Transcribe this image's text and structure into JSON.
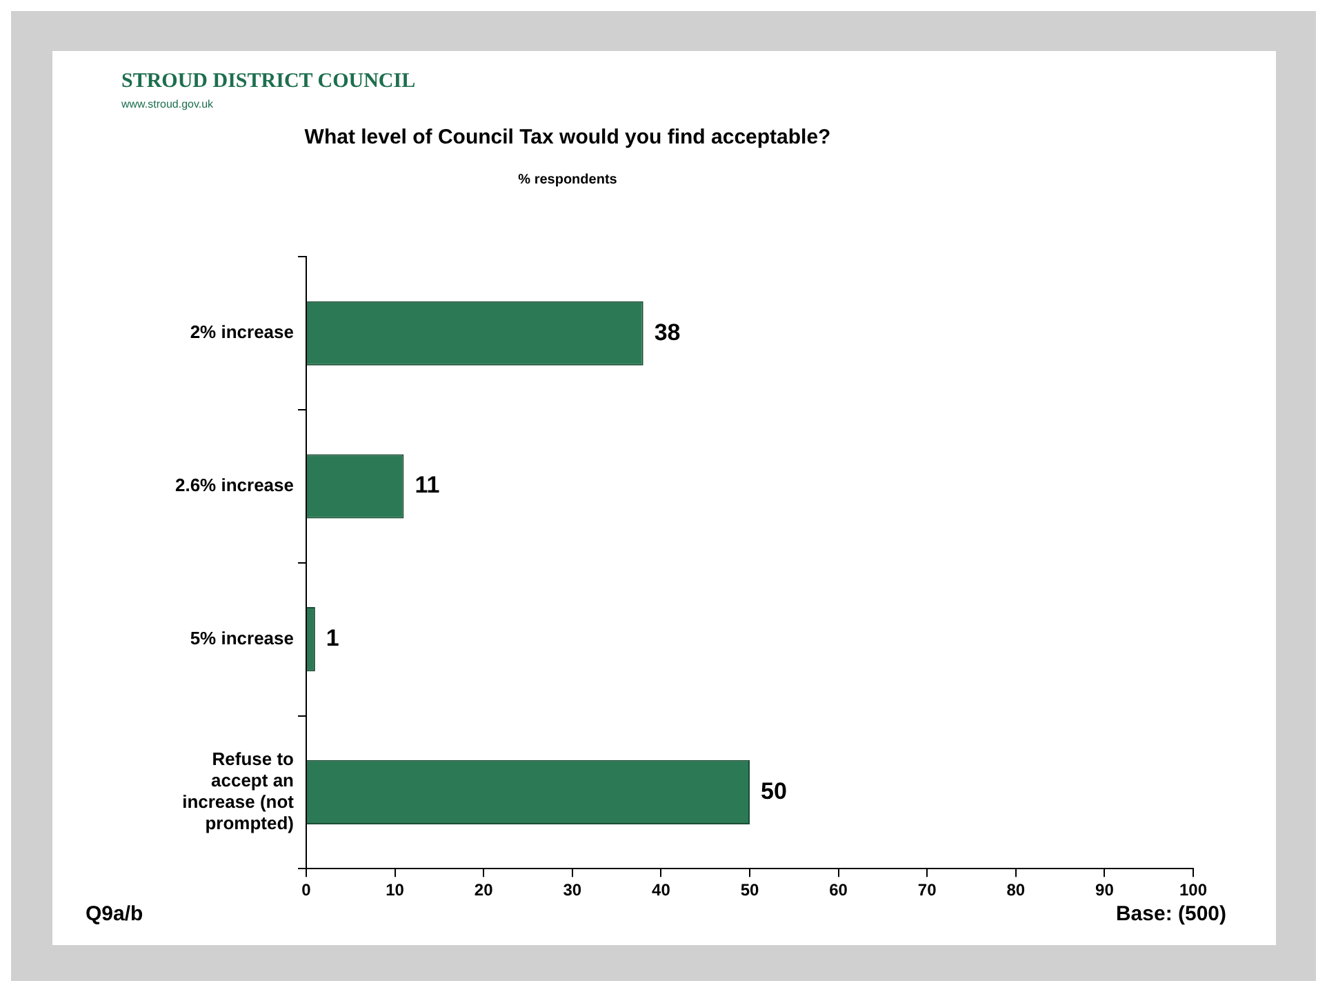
{
  "chart_data": {
    "type": "bar",
    "orientation": "horizontal",
    "title": "What level of Council Tax would you find acceptable?",
    "subtitle": "% respondents",
    "categories": [
      "2% increase",
      "2.6% increase",
      "5% increase",
      "Refuse to accept an increase (not prompted)"
    ],
    "values": [
      38,
      11,
      1,
      50
    ],
    "color": "#2b7a55",
    "xlim": [
      0,
      100
    ],
    "xticks": [
      0,
      10,
      20,
      30,
      40,
      50,
      60,
      70,
      80,
      90,
      100
    ],
    "grid": false,
    "legend": false,
    "data_labels": true,
    "annotations": [
      "STROUD DISTRICT COUNCIL",
      "www.stroud.gov.uk",
      "Q9a/b",
      "Base: (500)"
    ]
  }
}
